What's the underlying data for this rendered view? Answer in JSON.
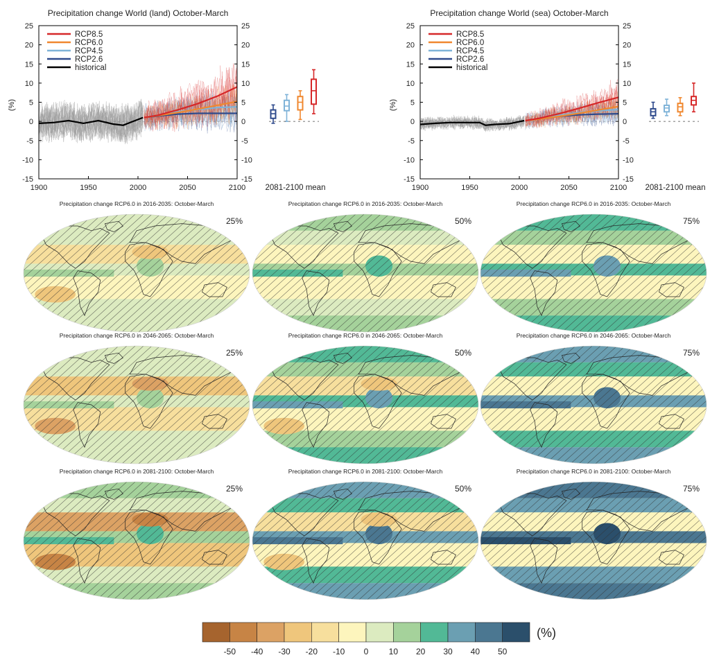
{
  "colors": {
    "rcp85": "#d62728",
    "rcp60": "#f0872e",
    "rcp45": "#7fb3d8",
    "rcp26": "#2e4a8c",
    "historical": "#000000",
    "historical_spread": "#9a9a9a"
  },
  "chart_data": [
    {
      "type": "line",
      "title": "Precipitation change World (land) October-March",
      "ylabel": "(%)",
      "xlim": [
        1900,
        2100
      ],
      "ylim": [
        -15,
        25
      ],
      "x_ticks": [
        "1900",
        "1950",
        "2000",
        "2050",
        "2100"
      ],
      "y_ticks": [
        "-15",
        "-10",
        "-5",
        "0",
        "5",
        "10",
        "15",
        "20",
        "25"
      ],
      "right_axis_ticks": true,
      "legend": {
        "placement": "top-left"
      },
      "series": [
        {
          "name": "RCP8.5",
          "key": "rcp85",
          "x": [
            2006,
            2020,
            2040,
            2060,
            2080,
            2100
          ],
          "y": [
            1.0,
            1.6,
            3.0,
            4.6,
            6.6,
            9.0
          ]
        },
        {
          "name": "RCP6.0",
          "key": "rcp60",
          "x": [
            2006,
            2020,
            2040,
            2060,
            2080,
            2100
          ],
          "y": [
            1.0,
            1.5,
            2.3,
            3.2,
            4.2,
            5.2
          ]
        },
        {
          "name": "RCP4.5",
          "key": "rcp45",
          "x": [
            2006,
            2020,
            2040,
            2060,
            2080,
            2100
          ],
          "y": [
            1.0,
            1.6,
            2.5,
            3.1,
            3.6,
            3.8
          ]
        },
        {
          "name": "RCP2.6",
          "key": "rcp26",
          "x": [
            2006,
            2020,
            2040,
            2060,
            2080,
            2100
          ],
          "y": [
            1.0,
            1.4,
            1.9,
            2.1,
            2.1,
            2.1
          ]
        },
        {
          "name": "historical",
          "key": "historical",
          "x": [
            1900,
            1915,
            1930,
            1945,
            1960,
            1975,
            1985,
            1995,
            2005
          ],
          "y": [
            -0.5,
            -0.3,
            0.2,
            -0.5,
            0.2,
            -0.7,
            -1.0,
            0.0,
            1.0
          ]
        }
      ],
      "spread_amplitude": {
        "historical": 6,
        "rcp": 4
      },
      "boxes_label": "2081-2100 mean",
      "boxes": [
        {
          "key": "rcp26",
          "whisker_low": -0.5,
          "q1": 0.8,
          "median": 2.0,
          "q3": 3.0,
          "whisker_high": 4.3
        },
        {
          "key": "rcp45",
          "whisker_low": 0.0,
          "q1": 2.8,
          "median": 4.0,
          "q3": 5.5,
          "whisker_high": 7.0
        },
        {
          "key": "rcp60",
          "whisker_low": 0.5,
          "q1": 3.0,
          "median": 5.0,
          "q3": 6.5,
          "whisker_high": 8.0
        },
        {
          "key": "rcp85",
          "whisker_low": 2.0,
          "q1": 4.5,
          "median": 8.0,
          "q3": 11.0,
          "whisker_high": 13.5
        }
      ]
    },
    {
      "type": "line",
      "title": "Precipitation change World (sea) October-March",
      "ylabel": "(%)",
      "xlim": [
        1900,
        2100
      ],
      "ylim": [
        -15,
        25
      ],
      "x_ticks": [
        "1900",
        "1950",
        "2000",
        "2050",
        "2100"
      ],
      "y_ticks": [
        "-15",
        "-10",
        "-5",
        "0",
        "5",
        "10",
        "15",
        "20",
        "25"
      ],
      "right_axis_ticks": true,
      "legend": {
        "placement": "top-left"
      },
      "series": [
        {
          "name": "RCP8.5",
          "key": "rcp85",
          "x": [
            2006,
            2020,
            2040,
            2060,
            2080,
            2100
          ],
          "y": [
            0.2,
            0.8,
            2.0,
            3.4,
            4.9,
            6.3
          ]
        },
        {
          "name": "RCP6.0",
          "key": "rcp60",
          "x": [
            2006,
            2020,
            2040,
            2060,
            2080,
            2100
          ],
          "y": [
            0.2,
            0.6,
            1.3,
            2.1,
            3.0,
            3.9
          ]
        },
        {
          "name": "RCP4.5",
          "key": "rcp45",
          "x": [
            2006,
            2020,
            2040,
            2060,
            2080,
            2100
          ],
          "y": [
            0.2,
            0.7,
            1.6,
            2.3,
            2.8,
            3.1
          ]
        },
        {
          "name": "RCP2.6",
          "key": "rcp26",
          "x": [
            2006,
            2020,
            2040,
            2060,
            2080,
            2100
          ],
          "y": [
            0.2,
            0.6,
            1.3,
            1.7,
            1.9,
            2.0
          ]
        },
        {
          "name": "historical",
          "key": "historical",
          "x": [
            1900,
            1915,
            1930,
            1945,
            1960,
            1966,
            1975,
            1990,
            2005
          ],
          "y": [
            -0.8,
            -0.5,
            -0.3,
            -0.3,
            -0.3,
            -1.0,
            -0.8,
            -0.6,
            0.2
          ]
        }
      ],
      "spread_amplitude": {
        "historical": 2,
        "rcp": 2.5
      },
      "boxes_label": "2081-2100 mean",
      "boxes": [
        {
          "key": "rcp26",
          "whisker_low": 0.8,
          "q1": 1.5,
          "median": 2.5,
          "q3": 3.3,
          "whisker_high": 5.0
        },
        {
          "key": "rcp45",
          "whisker_low": 1.5,
          "q1": 2.5,
          "median": 3.5,
          "q3": 4.2,
          "whisker_high": 5.8
        },
        {
          "key": "rcp60",
          "whisker_low": 1.5,
          "q1": 2.5,
          "median": 3.8,
          "q3": 4.7,
          "whisker_high": 6.2
        },
        {
          "key": "rcp85",
          "whisker_low": 2.5,
          "q1": 4.3,
          "median": 5.5,
          "q3": 6.5,
          "whisker_high": 10.0
        }
      ]
    },
    {
      "type": "heatmap",
      "projection": "robinson",
      "hatching": true,
      "colorbar": {
        "unit": "(%)",
        "tick_labels": [
          "-50",
          "-40",
          "-30",
          "-20",
          "-10",
          "0",
          "10",
          "20",
          "30",
          "40",
          "50"
        ],
        "colors": [
          "#a6642e",
          "#c78445",
          "#dca264",
          "#efc67c",
          "#f7df9d",
          "#fdf5bd",
          "#dcebc0",
          "#a5d29b",
          "#52b996",
          "#6b9fb2",
          "#4b7791",
          "#2b4f6b"
        ]
      },
      "panels": [
        {
          "title": "Precipitation change RCP6.0 in 2016-2035: October-March",
          "percentile": "25%",
          "wet": 0,
          "dry": 1
        },
        {
          "title": "Precipitation change RCP6.0 in 2016-2035: October-March",
          "percentile": "50%",
          "wet": 1,
          "dry": 0
        },
        {
          "title": "Precipitation change RCP6.0 in 2016-2035: October-March",
          "percentile": "75%",
          "wet": 2,
          "dry": 0
        },
        {
          "title": "Precipitation change RCP6.0 in 2046-2065: October-March",
          "percentile": "25%",
          "wet": 0,
          "dry": 2
        },
        {
          "title": "Precipitation change RCP6.0 in 2046-2065: October-March",
          "percentile": "50%",
          "wet": 2,
          "dry": 1
        },
        {
          "title": "Precipitation change RCP6.0 in 2046-2065: October-March",
          "percentile": "75%",
          "wet": 3,
          "dry": 0
        },
        {
          "title": "Precipitation change RCP6.0 in 2081-2100: October-March",
          "percentile": "25%",
          "wet": 1,
          "dry": 3
        },
        {
          "title": "Precipitation change RCP6.0 in 2081-2100: October-March",
          "percentile": "50%",
          "wet": 3,
          "dry": 1
        },
        {
          "title": "Precipitation change RCP6.0 in 2081-2100: October-March",
          "percentile": "75%",
          "wet": 4,
          "dry": 0
        }
      ]
    }
  ]
}
